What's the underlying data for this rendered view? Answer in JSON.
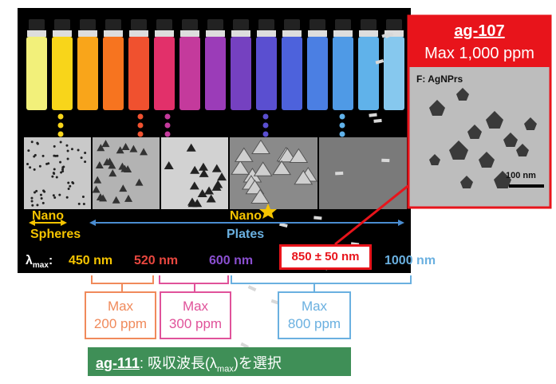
{
  "callout": {
    "title": "ag-107",
    "subtitle": "Max 1,000 ppm",
    "image_label": "F: AgNPrs",
    "scale_bar": "100 nm"
  },
  "panel": {
    "spheres_label": [
      "Nano",
      "Spheres"
    ],
    "plates_label": [
      "Nano",
      "Plates"
    ],
    "lambda": {
      "symbol": "λ",
      "subscript": "max",
      "suffix": ":"
    },
    "wavelengths": [
      "450 nm",
      "520 nm",
      "600 nm",
      "1000 nm"
    ],
    "highlight": "850 ± 50 nm"
  },
  "limits": [
    {
      "line1": "Max",
      "line2": "200 ppm"
    },
    {
      "line1": "Max",
      "line2": "300 ppm"
    },
    {
      "line1": "Max",
      "line2": "800 ppm"
    }
  ],
  "footer": {
    "code": "ag-111",
    "text_before": ": 吸収波長(λ",
    "subscript": "max",
    "text_after": ")を選択"
  }
}
